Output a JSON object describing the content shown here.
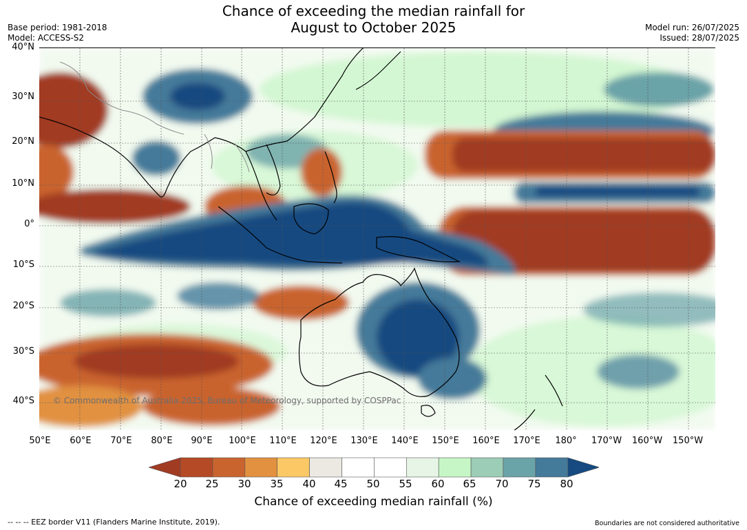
{
  "title_line1": "Chance of exceeding the median rainfall for",
  "title_line2": "August to October 2025",
  "meta_left": [
    "Base period: 1981-2018",
    "Model: ACCESS-S2"
  ],
  "meta_right": [
    "Model run: 26/07/2025",
    "Issued: 28/07/2025"
  ],
  "lat_labels": [
    "40°N",
    "30°N",
    "20°N",
    "10°N",
    "0°",
    "10°S",
    "20°S",
    "30°S",
    "40°S"
  ],
  "lon_labels": [
    "50°E",
    "60°E",
    "70°E",
    "80°E",
    "90°E",
    "100°E",
    "110°E",
    "120°E",
    "130°E",
    "140°E",
    "150°E",
    "160°E",
    "170°E",
    "180°",
    "170°W",
    "160°W",
    "150°W"
  ],
  "copyright": "© Commonwealth of Australia 2025, Bureau of Meteorology, supported by COSPPac",
  "colorbar": {
    "label": "Chance of exceeding median rainfall (%)",
    "ticks": [
      "20",
      "25",
      "30",
      "35",
      "40",
      "45",
      "50",
      "55",
      "60",
      "65",
      "70",
      "75",
      "80"
    ],
    "colors": [
      "#a13b22",
      "#b54a26",
      "#c9642f",
      "#e1913f",
      "#fbc865",
      "#ece9e3",
      "#ffffff",
      "#ffffff",
      "#e7f5e6",
      "#c6f6c6",
      "#9ccdb6",
      "#6aa3a8",
      "#447a9a",
      "#164a80"
    ]
  },
  "footer_left": "--  --  -- EEZ border V11 (Flanders Marine Institute, 2019).",
  "footer_right": "Boundaries are not considered authoritative"
}
